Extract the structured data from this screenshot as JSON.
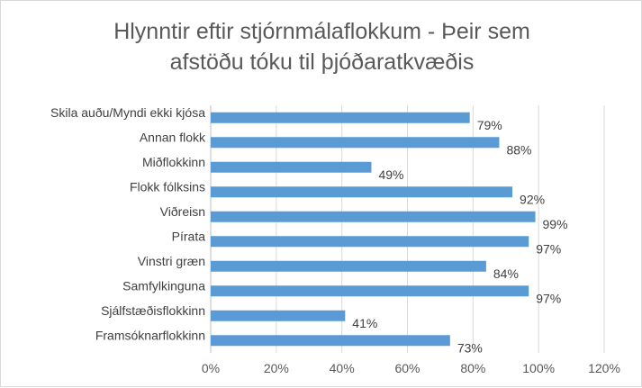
{
  "chart_data": {
    "type": "bar",
    "orientation": "horizontal",
    "title": "Hlynntir eftir stjórnmálaflokkum - Þeir sem afstöðu tóku til þjóðaratkvæðis",
    "title_lines": [
      "Hlynntir eftir stjórnmálaflokkum - Þeir sem",
      "afstöðu tóku til þjóðaratkvæðis"
    ],
    "categories": [
      "Skila auðu/Myndi ekki kjósa",
      "Annan flokk",
      "Miðflokkinn",
      "Flokk fólksins",
      "Viðreisn",
      "Pírata",
      "Vinstri græn",
      "Samfylkinguna",
      "Sjálfstæðisflokkinn",
      "Framsóknarflokkinn"
    ],
    "values": [
      79,
      88,
      49,
      92,
      99,
      97,
      84,
      97,
      41,
      73
    ],
    "data_labels": [
      "79%",
      "88%",
      "49%",
      "92%",
      "99%",
      "97%",
      "84%",
      "97%",
      "41%",
      "73%"
    ],
    "x_ticks": [
      "0%",
      "20%",
      "40%",
      "60%",
      "80%",
      "100%",
      "120%"
    ],
    "xlim": [
      0,
      120
    ],
    "xlabel": "",
    "ylabel": "",
    "grid": true,
    "legend": "none",
    "bar_color": "#5b9bd5"
  }
}
